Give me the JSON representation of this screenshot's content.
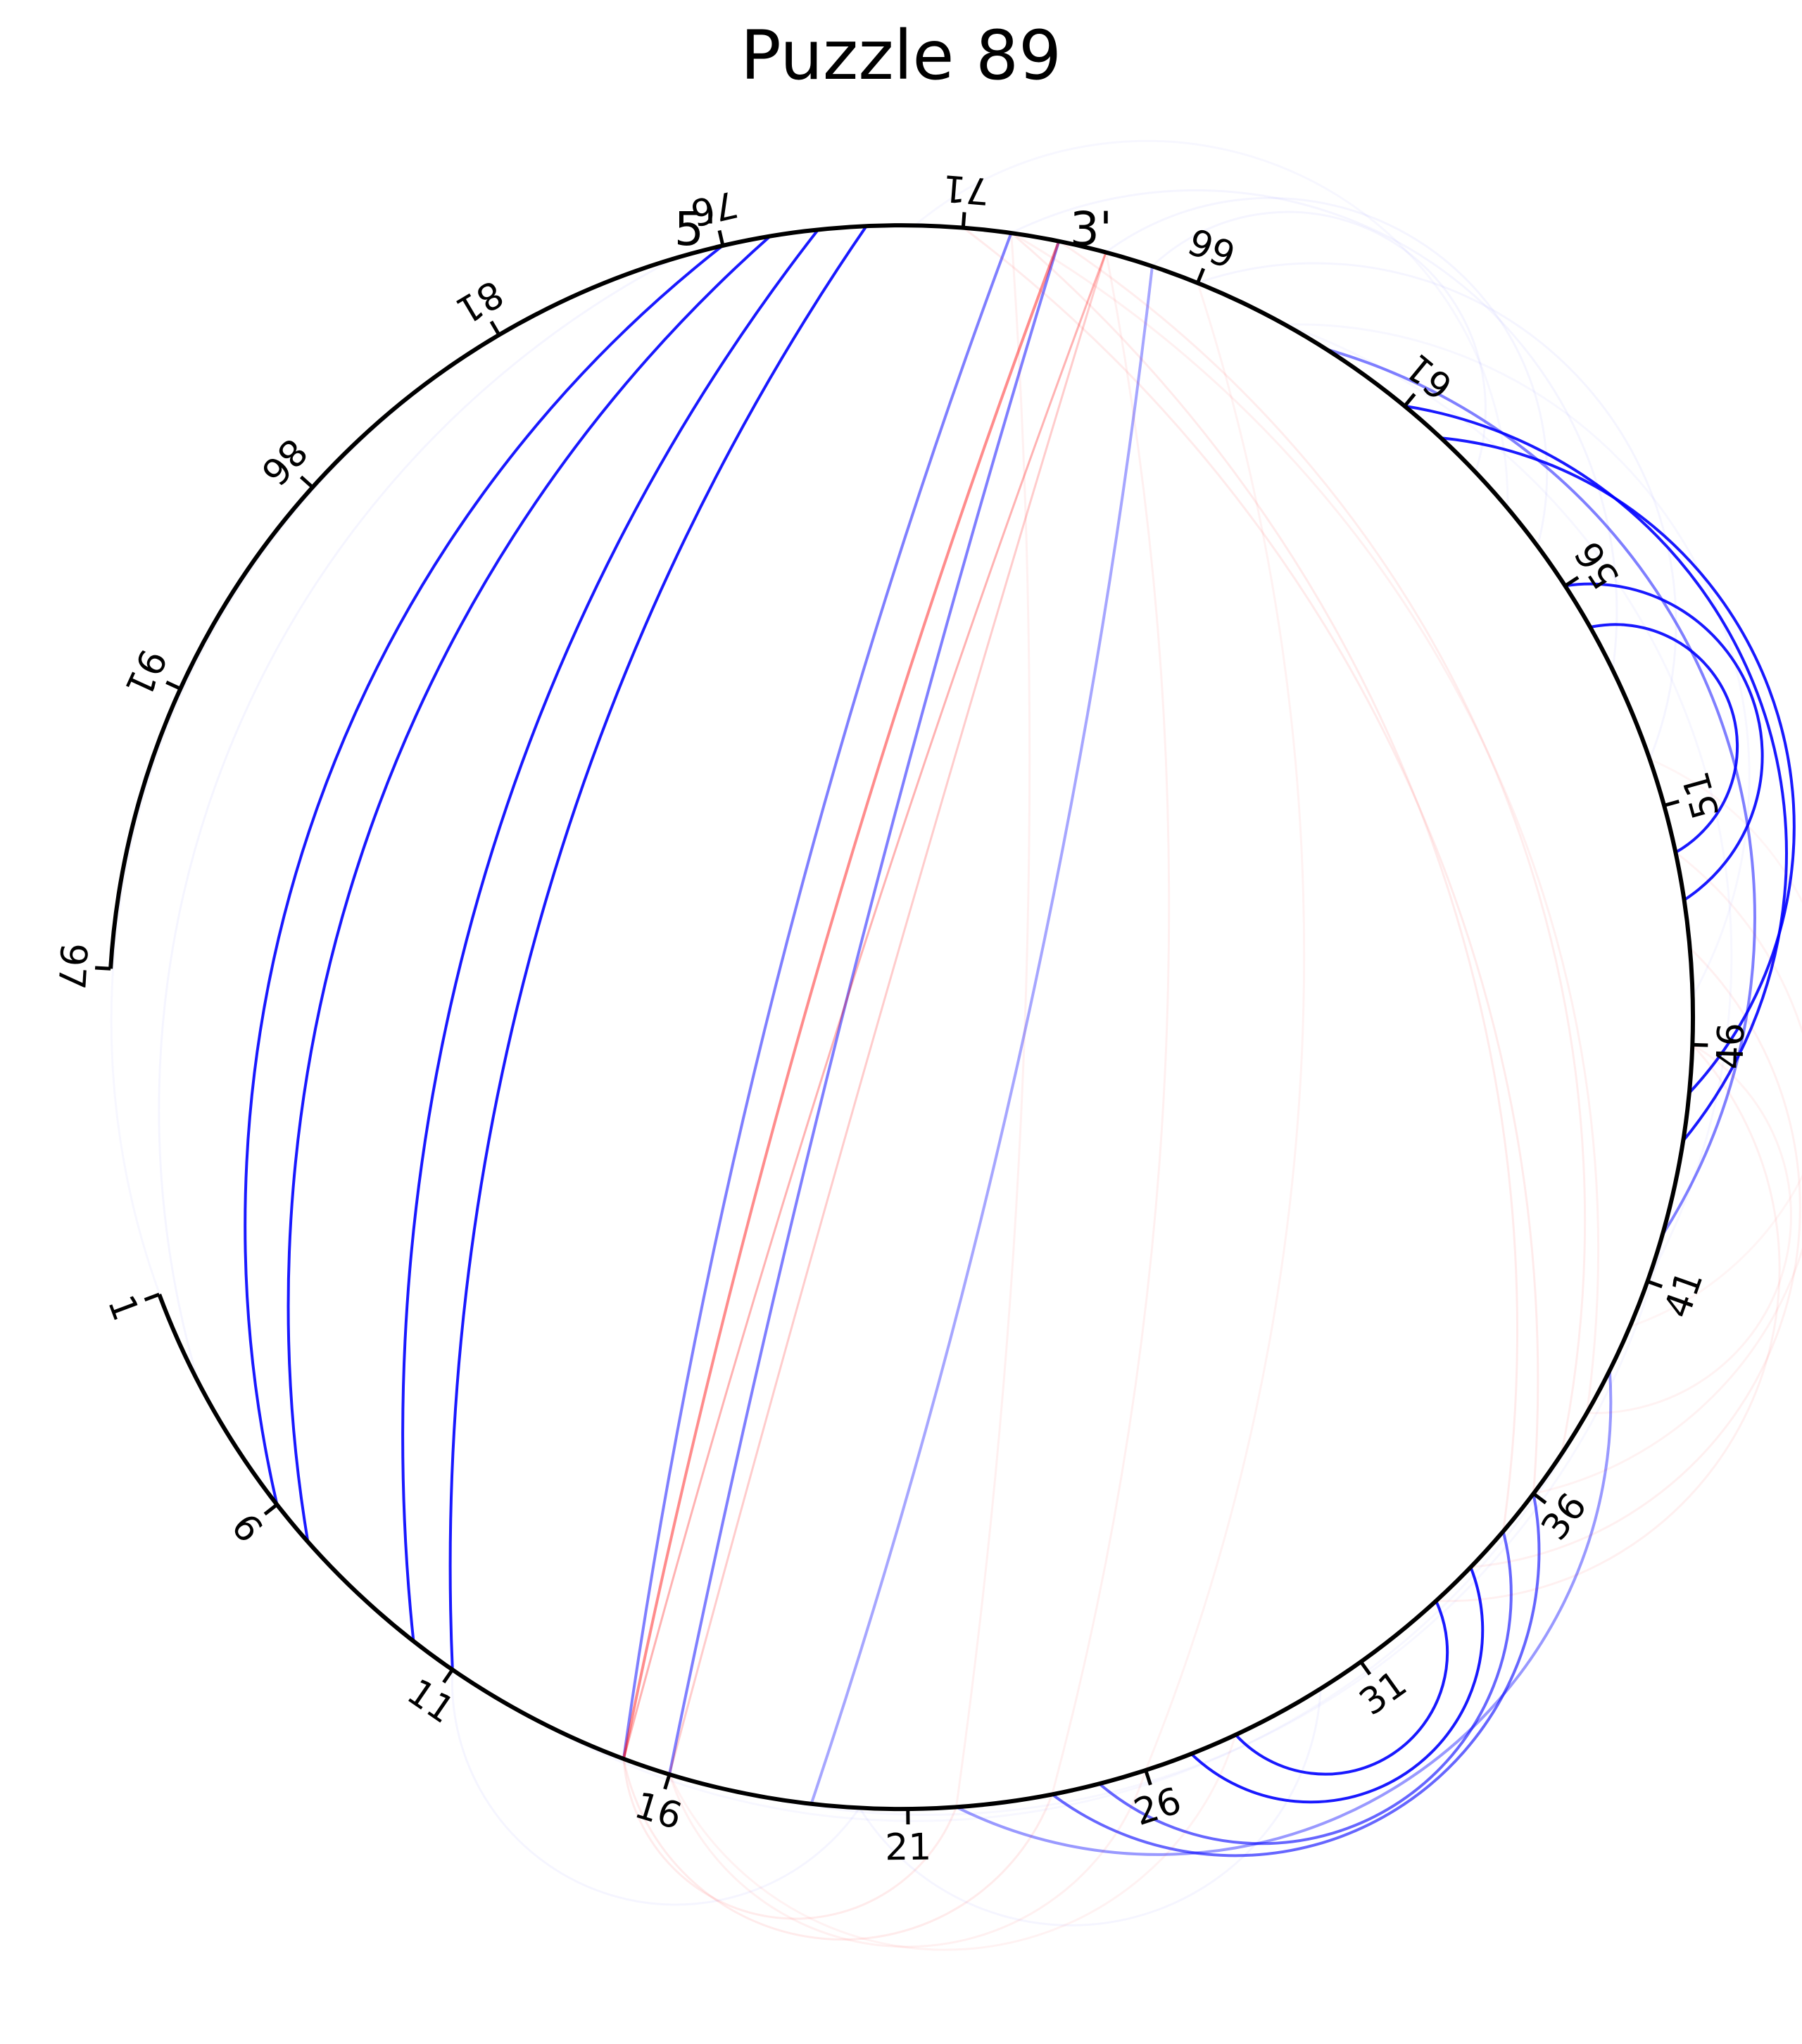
{
  "title": "Puzzle 89",
  "five_prime_label": "5'",
  "three_prime_label": "3'",
  "colors": {
    "backbone": "#000000",
    "strong_pair": "#0000ff",
    "alt_pair": "#ff0000"
  },
  "sequence_length": 97,
  "tick_labels": [
    1,
    6,
    11,
    16,
    21,
    26,
    31,
    36,
    41,
    46,
    51,
    56,
    61,
    66,
    71,
    76,
    81,
    86,
    91,
    97
  ],
  "pairs": [
    {
      "i": 6,
      "j": 76,
      "color": "blue",
      "opacity": 0.9
    },
    {
      "i": 7,
      "j": 75,
      "color": "blue",
      "opacity": 0.9
    },
    {
      "i": 10,
      "j": 74,
      "color": "blue",
      "opacity": 0.9
    },
    {
      "i": 11,
      "j": 73,
      "color": "blue",
      "opacity": 0.9
    },
    {
      "i": 15,
      "j": 70,
      "color": "blue",
      "opacity": 0.5
    },
    {
      "i": 16,
      "j": 69,
      "color": "blue",
      "opacity": 0.5
    },
    {
      "i": 19,
      "j": 67,
      "color": "blue",
      "opacity": 0.35
    },
    {
      "i": 22,
      "j": 39,
      "color": "blue",
      "opacity": 0.4
    },
    {
      "i": 24,
      "j": 36,
      "color": "blue",
      "opacity": 0.6
    },
    {
      "i": 25,
      "j": 35,
      "color": "blue",
      "opacity": 0.6
    },
    {
      "i": 27,
      "j": 34,
      "color": "blue",
      "opacity": 0.9
    },
    {
      "i": 28,
      "j": 33,
      "color": "blue",
      "opacity": 0.9
    },
    {
      "i": 42,
      "j": 63,
      "color": "blue",
      "opacity": 0.5
    },
    {
      "i": 44,
      "j": 61,
      "color": "blue",
      "opacity": 0.9
    },
    {
      "i": 45,
      "j": 60,
      "color": "blue",
      "opacity": 0.9
    },
    {
      "i": 49,
      "j": 56,
      "color": "blue",
      "opacity": 0.9
    },
    {
      "i": 50,
      "j": 55,
      "color": "blue",
      "opacity": 0.9
    },
    {
      "i": 15,
      "j": 69,
      "color": "red",
      "opacity": 0.45
    },
    {
      "i": 15,
      "j": 68,
      "color": "red",
      "opacity": 0.3
    },
    {
      "i": 16,
      "j": 68,
      "color": "red",
      "opacity": 0.2
    },
    {
      "i": 15,
      "j": 22,
      "color": "red",
      "opacity": 0.08
    },
    {
      "i": 15,
      "j": 24,
      "color": "red",
      "opacity": 0.08
    },
    {
      "i": 16,
      "j": 26,
      "color": "red",
      "opacity": 0.06
    },
    {
      "i": 16,
      "j": 28,
      "color": "red",
      "opacity": 0.05
    },
    {
      "i": 22,
      "j": 70,
      "color": "red",
      "opacity": 0.06
    },
    {
      "i": 24,
      "j": 68,
      "color": "red",
      "opacity": 0.06
    },
    {
      "i": 26,
      "j": 66,
      "color": "red",
      "opacity": 0.05
    },
    {
      "i": 35,
      "j": 70,
      "color": "red",
      "opacity": 0.08
    },
    {
      "i": 36,
      "j": 71,
      "color": "red",
      "opacity": 0.08
    },
    {
      "i": 37,
      "j": 69,
      "color": "red",
      "opacity": 0.07
    },
    {
      "i": 38,
      "j": 70,
      "color": "red",
      "opacity": 0.06
    },
    {
      "i": 33,
      "j": 46,
      "color": "red",
      "opacity": 0.06
    },
    {
      "i": 34,
      "j": 48,
      "color": "red",
      "opacity": 0.06
    },
    {
      "i": 36,
      "j": 50,
      "color": "red",
      "opacity": 0.05
    },
    {
      "i": 38,
      "j": 46,
      "color": "red",
      "opacity": 0.05
    },
    {
      "i": 40,
      "j": 52,
      "color": "red",
      "opacity": 0.04
    },
    {
      "i": 3,
      "j": 77,
      "color": "blue",
      "opacity": 0.04
    },
    {
      "i": 2,
      "j": 79,
      "color": "blue",
      "opacity": 0.03
    },
    {
      "i": 11,
      "j": 20,
      "color": "blue",
      "opacity": 0.04
    },
    {
      "i": 13,
      "j": 38,
      "color": "blue",
      "opacity": 0.03
    },
    {
      "i": 18,
      "j": 43,
      "color": "blue",
      "opacity": 0.03
    },
    {
      "i": 20,
      "j": 30,
      "color": "blue",
      "opacity": 0.04
    },
    {
      "i": 52,
      "j": 66,
      "color": "blue",
      "opacity": 0.04
    },
    {
      "i": 54,
      "j": 70,
      "color": "blue",
      "opacity": 0.04
    },
    {
      "i": 57,
      "j": 68,
      "color": "blue",
      "opacity": 0.04
    },
    {
      "i": 59,
      "j": 67,
      "color": "blue",
      "opacity": 0.04
    },
    {
      "i": 41,
      "j": 64,
      "color": "blue",
      "opacity": 0.03
    },
    {
      "i": 47,
      "j": 64,
      "color": "blue",
      "opacity": 0.03
    },
    {
      "i": 58,
      "j": 72,
      "color": "blue",
      "opacity": 0.03
    }
  ]
}
